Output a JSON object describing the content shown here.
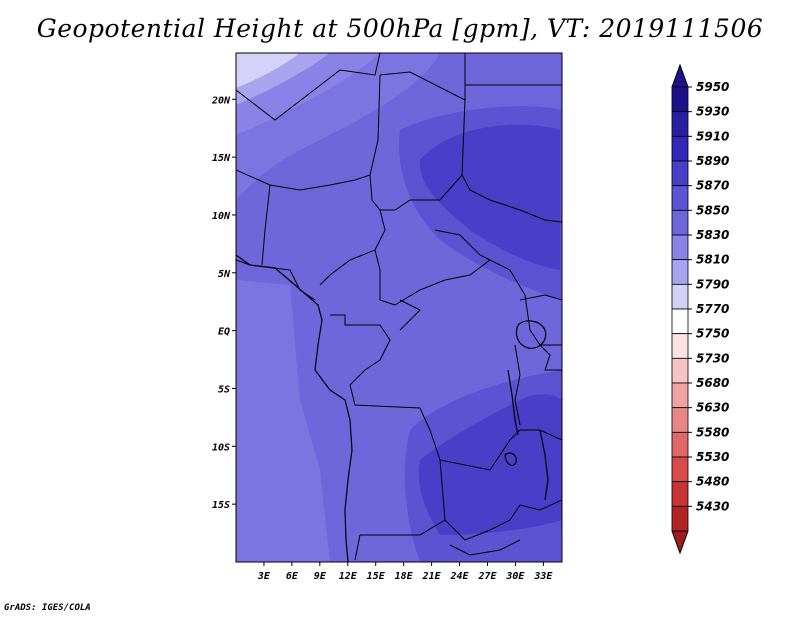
{
  "title": "Geopotential Height at 500hPa [gpm], VT: 2019111506",
  "credit": "GrADS: IGES/COLA",
  "map": {
    "lon_range": [
      0,
      35
    ],
    "lat_range": [
      -20,
      24
    ],
    "lat_labels": [
      {
        "lat": 20,
        "text": "20N"
      },
      {
        "lat": 15,
        "text": "15N"
      },
      {
        "lat": 10,
        "text": "10N"
      },
      {
        "lat": 5,
        "text": "5N"
      },
      {
        "lat": 0,
        "text": "EQ"
      },
      {
        "lat": -5,
        "text": "5S"
      },
      {
        "lat": -10,
        "text": "10S"
      },
      {
        "lat": -15,
        "text": "15S"
      }
    ],
    "lon_labels": [
      {
        "lon": 3,
        "text": "3E"
      },
      {
        "lon": 6,
        "text": "6E"
      },
      {
        "lon": 9,
        "text": "9E"
      },
      {
        "lon": 12,
        "text": "12E"
      },
      {
        "lon": 15,
        "text": "15E"
      },
      {
        "lon": 18,
        "text": "18E"
      },
      {
        "lon": 21,
        "text": "21E"
      },
      {
        "lon": 24,
        "text": "24E"
      },
      {
        "lon": 27,
        "text": "27E"
      },
      {
        "lon": 30,
        "text": "30E"
      },
      {
        "lon": 33,
        "text": "33E"
      }
    ]
  },
  "colorbar": {
    "levels": [
      {
        "label": "5950",
        "color": "#1e0f8a"
      },
      {
        "label": "5930",
        "color": "#2a1fa0"
      },
      {
        "label": "5910",
        "color": "#3326b8"
      },
      {
        "label": "5890",
        "color": "#4a3ec8"
      },
      {
        "label": "5870",
        "color": "#5c52d2"
      },
      {
        "label": "5850",
        "color": "#6f66dc"
      },
      {
        "label": "5830",
        "color": "#8a82e6"
      },
      {
        "label": "5810",
        "color": "#aaa4ee"
      },
      {
        "label": "5790",
        "color": "#d4d2f8"
      },
      {
        "label": "5770",
        "color": "#ffffff"
      },
      {
        "label": "5750",
        "color": "#fbe2e2"
      },
      {
        "label": "5730",
        "color": "#f6c3c3"
      },
      {
        "label": "5680",
        "color": "#efa3a3"
      },
      {
        "label": "5630",
        "color": "#e88585"
      },
      {
        "label": "5580",
        "color": "#e06868"
      },
      {
        "label": "5530",
        "color": "#d84c4c"
      },
      {
        "label": "5480",
        "color": "#c83434"
      },
      {
        "label": "5430",
        "color": "#b02424"
      }
    ],
    "top_cap_color": "#1e0f8a",
    "bottom_cap_color": "#a01c1c"
  }
}
